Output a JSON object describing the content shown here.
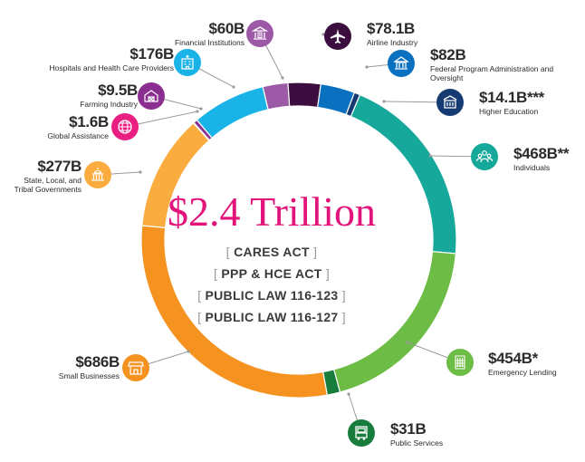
{
  "total": "$2.4 Trillion",
  "acts": [
    "CARES ACT",
    "PPP & HCE ACT",
    "PUBLIC LAW 116-123",
    "PUBLIC LAW 116-127"
  ],
  "chart_data": {
    "type": "pie",
    "title": "$2.4 Trillion",
    "legend": "labels around ring",
    "series": [
      {
        "amount": "$78.1B",
        "name": "Airline Industry",
        "value": 78.1,
        "color": "#3c0d3f",
        "icon": "airplane-icon"
      },
      {
        "amount": "$82B",
        "name": "Federal Program Administration and Oversight",
        "value": 82,
        "color": "#0a71c0",
        "icon": "government-building-icon"
      },
      {
        "amount": "$14.1B***",
        "name": "Higher Education",
        "value": 14.1,
        "color": "#163b73",
        "icon": "university-icon"
      },
      {
        "amount": "$468B**",
        "name": "Individuals",
        "value": 468,
        "color": "#17a89c",
        "icon": "people-icon"
      },
      {
        "amount": "$454B*",
        "name": "Emergency Lending",
        "value": 454,
        "color": "#6dbc45",
        "icon": "office-building-icon"
      },
      {
        "amount": "$31B",
        "name": "Public Services",
        "value": 31,
        "color": "#187d3c",
        "icon": "bus-icon"
      },
      {
        "amount": "$686B",
        "name": "Small Businesses",
        "value": 686,
        "color": "#f69220",
        "icon": "storefront-icon"
      },
      {
        "amount": "$277B",
        "name": "State, Local, and Tribal Governments",
        "value": 277,
        "color": "#fbac3f",
        "icon": "capitol-building-icon"
      },
      {
        "amount": "$1.6B",
        "name": "Global Assistance",
        "value": 1.6,
        "color": "#ea1f82",
        "icon": "globe-icon"
      },
      {
        "amount": "$9.5B",
        "name": "Farming Industry",
        "value": 9.5,
        "color": "#8a2e8f",
        "icon": "barn-icon"
      },
      {
        "amount": "$176B",
        "name": "Hospitals and Health Care Providers",
        "value": 176,
        "color": "#1ab3e8",
        "icon": "hospital-icon"
      },
      {
        "amount": "$60B",
        "name": "Financial Institutions",
        "value": 60,
        "color": "#9b59a6",
        "icon": "bank-icon"
      }
    ]
  }
}
